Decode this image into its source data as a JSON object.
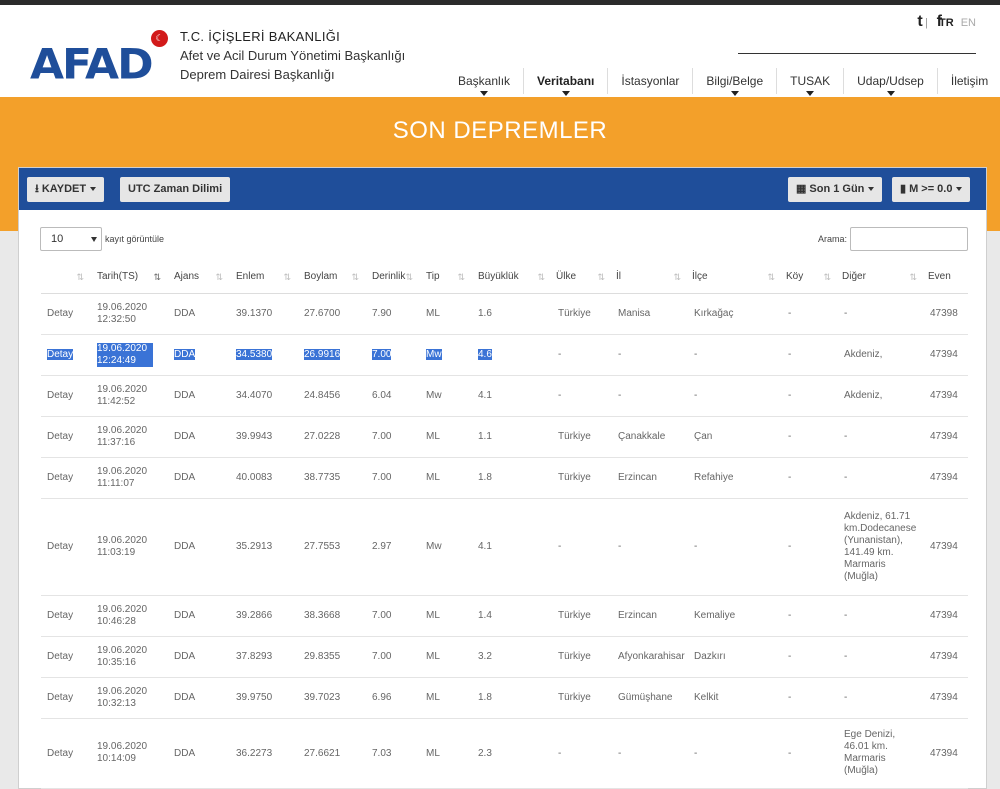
{
  "header": {
    "logo": "AFAD",
    "ministry_line1": "T.C. İÇİŞLERİ BAKANLIĞI",
    "ministry_line2": "Afet ve Acil Durum Yönetimi Başkanlığı",
    "ministry_line3": "Deprem Dairesi Başkanlığı",
    "social": [
      {
        "icon": "twitter-icon",
        "glyph": "t"
      },
      {
        "icon": "facebook-icon",
        "glyph": "f"
      }
    ],
    "lang_tr": "TR",
    "lang_en": "EN"
  },
  "nav": [
    {
      "label": "Başkanlık",
      "dropdown": true,
      "bold": false
    },
    {
      "label": "Veritabanı",
      "dropdown": true,
      "bold": true
    },
    {
      "label": "İstasyonlar",
      "dropdown": false,
      "bold": false
    },
    {
      "label": "Bilgi/Belge",
      "dropdown": true,
      "bold": false
    },
    {
      "label": "TUSAK",
      "dropdown": true,
      "bold": false
    },
    {
      "label": "Udap/Udsep",
      "dropdown": true,
      "bold": false
    },
    {
      "label": "İletişim",
      "dropdown": false,
      "bold": false
    }
  ],
  "page_title": "SON DEPREMLER",
  "toolbar": {
    "save_label": "KAYDET",
    "tz_label": "UTC Zaman Dilimi",
    "period_label": "Son 1 Gün",
    "magnitude_label": "M >= 0.0"
  },
  "table_controls": {
    "length_value": "10",
    "length_label": "kayıt görüntüle",
    "search_label": "Arama:",
    "search_value": ""
  },
  "columns": [
    "",
    "Tarih(TS)",
    "Ajans",
    "Enlem",
    "Boylam",
    "Derinlik",
    "Tip",
    "Büyüklük",
    "Ülke",
    "İl",
    "İlçe",
    "Köy",
    "Diğer",
    "Even"
  ],
  "rows": [
    [
      "Detay",
      "19.06.2020 12:32:50",
      "DDA",
      "39.1370",
      "27.6700",
      "7.90",
      "ML",
      "1.6",
      "Türkiye",
      "Manisa",
      "Kırkağaç",
      "-",
      "-",
      "47398"
    ],
    [
      "Detay",
      "19.06.2020 12:24:49",
      "DDA",
      "34.5380",
      "26.9916",
      "7.00",
      "Mw",
      "4.6",
      "-",
      "-",
      "-",
      "-",
      "Akdeniz,",
      "47394"
    ],
    [
      "Detay",
      "19.06.2020 11:42:52",
      "DDA",
      "34.4070",
      "24.8456",
      "6.04",
      "Mw",
      "4.1",
      "-",
      "-",
      "-",
      "-",
      "Akdeniz,",
      "47394"
    ],
    [
      "Detay",
      "19.06.2020 11:37:16",
      "DDA",
      "39.9943",
      "27.0228",
      "7.00",
      "ML",
      "1.1",
      "Türkiye",
      "Çanakkale",
      "Çan",
      "-",
      "-",
      "47394"
    ],
    [
      "Detay",
      "19.06.2020 11:11:07",
      "DDA",
      "40.0083",
      "38.7735",
      "7.00",
      "ML",
      "1.8",
      "Türkiye",
      "Erzincan",
      "Refahiye",
      "-",
      "-",
      "47394"
    ],
    [
      "Detay",
      "19.06.2020 11:03:19",
      "DDA",
      "35.2913",
      "27.7553",
      "2.97",
      "Mw",
      "4.1",
      "-",
      "-",
      "-",
      "-",
      "Akdeniz, 61.71 km.Dodecanese (Yunanistan), 141.49 km. Marmaris (Muğla)",
      "47394"
    ],
    [
      "Detay",
      "19.06.2020 10:46:28",
      "DDA",
      "39.2866",
      "38.3668",
      "7.00",
      "ML",
      "1.4",
      "Türkiye",
      "Erzincan",
      "Kemaliye",
      "-",
      "-",
      "47394"
    ],
    [
      "Detay",
      "19.06.2020 10:35:16",
      "DDA",
      "37.8293",
      "29.8355",
      "7.00",
      "ML",
      "3.2",
      "Türkiye",
      "Afyonkarahisar",
      "Dazkırı",
      "-",
      "-",
      "47394"
    ],
    [
      "Detay",
      "19.06.2020 10:32:13",
      "DDA",
      "39.9750",
      "39.7023",
      "6.96",
      "ML",
      "1.8",
      "Türkiye",
      "Gümüşhane",
      "Kelkit",
      "-",
      "-",
      "47394"
    ],
    [
      "Detay",
      "19.06.2020 10:14:09",
      "DDA",
      "36.2273",
      "27.6621",
      "7.03",
      "ML",
      "2.3",
      "-",
      "-",
      "-",
      "-",
      "Ege Denizi, 46.01 km. Marmaris (Muğla)",
      "47394"
    ]
  ],
  "selected_row": 1,
  "colors": {
    "brand_blue": "#1f4e9a",
    "banner_orange": "#f3a02a",
    "selection": "#3a73d6"
  }
}
